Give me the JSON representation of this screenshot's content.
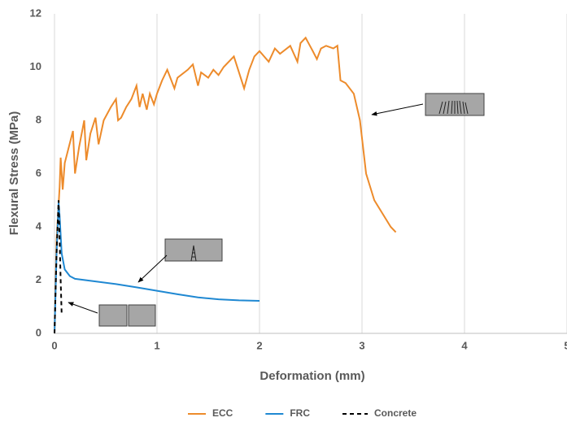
{
  "chart_data": {
    "type": "line",
    "xlabel": "Deformation (mm)",
    "ylabel": "Flexural Stress (MPa)",
    "xlim": [
      0,
      5
    ],
    "xticks": [
      0,
      1,
      2,
      3,
      4,
      5
    ],
    "ylim": [
      0,
      12
    ],
    "yticks": [
      0,
      2,
      4,
      6,
      8,
      10,
      12
    ],
    "grid": "x",
    "legend": "bottom",
    "series": [
      {
        "name": "ECC",
        "color": "#ED8B2B",
        "style": "solid",
        "x": [
          0,
          0.02,
          0.05,
          0.06,
          0.08,
          0.1,
          0.14,
          0.18,
          0.2,
          0.24,
          0.29,
          0.31,
          0.35,
          0.4,
          0.43,
          0.48,
          0.55,
          0.6,
          0.62,
          0.65,
          0.7,
          0.75,
          0.8,
          0.83,
          0.86,
          0.9,
          0.93,
          0.97,
          1.0,
          1.05,
          1.1,
          1.17,
          1.2,
          1.3,
          1.35,
          1.4,
          1.43,
          1.5,
          1.55,
          1.6,
          1.65,
          1.75,
          1.85,
          1.9,
          1.95,
          2.0,
          2.09,
          2.15,
          2.2,
          2.3,
          2.37,
          2.4,
          2.45,
          2.52,
          2.56,
          2.6,
          2.65,
          2.72,
          2.76,
          2.79,
          2.84,
          2.92,
          2.98,
          3.04,
          3.12,
          3.2,
          3.28,
          3.33
        ],
        "values": [
          0,
          3.5,
          5.5,
          6.6,
          5.4,
          6.4,
          7.0,
          7.6,
          6.0,
          7.0,
          8.0,
          6.5,
          7.5,
          8.1,
          7.1,
          8.0,
          8.5,
          8.8,
          8.0,
          8.1,
          8.5,
          8.8,
          9.3,
          8.5,
          9.0,
          8.4,
          9.0,
          8.6,
          9.0,
          9.5,
          9.9,
          9.2,
          9.6,
          9.9,
          10.1,
          9.3,
          9.8,
          9.6,
          9.9,
          9.7,
          10.0,
          10.4,
          9.2,
          9.9,
          10.4,
          10.6,
          10.2,
          10.7,
          10.5,
          10.8,
          10.2,
          10.9,
          11.1,
          10.6,
          10.3,
          10.7,
          10.8,
          10.7,
          10.8,
          9.5,
          9.4,
          9.0,
          8.0,
          6.0,
          5.0,
          4.5,
          4.0,
          3.8
        ]
      },
      {
        "name": "FRC",
        "color": "#1F88D2",
        "style": "solid",
        "x": [
          0,
          0.02,
          0.04,
          0.05,
          0.07,
          0.1,
          0.15,
          0.2,
          0.4,
          0.6,
          0.8,
          1.0,
          1.2,
          1.4,
          1.6,
          1.8,
          2.0
        ],
        "values": [
          0,
          3.0,
          4.9,
          4.4,
          3.0,
          2.4,
          2.15,
          2.05,
          1.95,
          1.85,
          1.73,
          1.6,
          1.47,
          1.35,
          1.28,
          1.24,
          1.22
        ]
      },
      {
        "name": "Concrete",
        "color": "#000000",
        "style": "dashed",
        "x": [
          0,
          0.02,
          0.04,
          0.05,
          0.06,
          0.07
        ],
        "values": [
          0,
          3.0,
          5.0,
          3.5,
          2.0,
          0.7
        ]
      }
    ]
  }
}
